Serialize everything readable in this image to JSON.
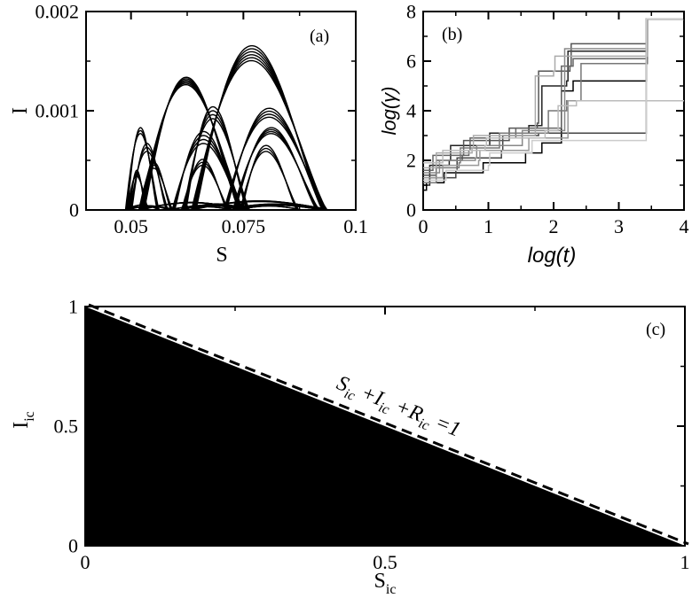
{
  "chart_data": [
    {
      "panel": "(a)",
      "type": "line",
      "xlabel": "S",
      "ylabel": "I",
      "xlim": [
        0.04,
        0.1
      ],
      "ylim": [
        0,
        0.002
      ],
      "xticks": [
        "0.05",
        "0.075",
        "0.1"
      ],
      "xtick_values": [
        0.05,
        0.075,
        0.1
      ],
      "yticks": [
        "0",
        "0.001",
        "0.002"
      ],
      "ytick_values": [
        0,
        0.001,
        0.002
      ],
      "color": "#000000",
      "loops": [
        {
          "s0": 0.049,
          "s1": 0.056,
          "peak": 0.0008,
          "copies": 3,
          "spread": 3e-05
        },
        {
          "s0": 0.0495,
          "s1": 0.0535,
          "peak": 0.00037,
          "copies": 4,
          "spread": 2e-05
        },
        {
          "s0": 0.05,
          "s1": 0.058,
          "peak": 0.00063,
          "copies": 3,
          "spread": 4e-05
        },
        {
          "s0": 0.052,
          "s1": 0.059,
          "peak": 0.00045,
          "copies": 3,
          "spread": 3e-05
        },
        {
          "s0": 0.0525,
          "s1": 0.0745,
          "peak": 0.0013,
          "copies": 6,
          "spread": 1.5e-05
        },
        {
          "s0": 0.0595,
          "s1": 0.0745,
          "peak": 0.00073,
          "copies": 4,
          "spread": 4e-05
        },
        {
          "s0": 0.0615,
          "s1": 0.0715,
          "peak": 0.00048,
          "copies": 3,
          "spread": 3e-05
        },
        {
          "s0": 0.062,
          "s1": 0.076,
          "peak": 0.00098,
          "copies": 4,
          "spread": 4e-05
        },
        {
          "s0": 0.064,
          "s1": 0.093,
          "peak": 0.00158,
          "copies": 6,
          "spread": 3e-05
        },
        {
          "s0": 0.071,
          "s1": 0.093,
          "peak": 0.00098,
          "copies": 4,
          "spread": 3e-05
        },
        {
          "s0": 0.073,
          "s1": 0.0915,
          "peak": 0.0008,
          "copies": 4,
          "spread": 2e-05
        },
        {
          "s0": 0.0745,
          "s1": 0.087,
          "peak": 0.00062,
          "copies": 3,
          "spread": 3e-05
        }
      ]
    },
    {
      "panel": "(b)",
      "type": "line",
      "xlabel": "log(t)",
      "ylabel": "log(γ)",
      "xlim": [
        0,
        4
      ],
      "ylim": [
        0,
        8
      ],
      "xticks": [
        "0",
        "1",
        "2",
        "3",
        "4"
      ],
      "xtick_values": [
        0,
        1,
        2,
        3,
        4
      ],
      "yticks": [
        "0",
        "2",
        "4",
        "6",
        "8"
      ],
      "ytick_values": [
        0,
        2,
        4,
        6,
        8
      ],
      "series": [
        {
          "color": "#000000",
          "points": [
            [
              0,
              0.8
            ],
            [
              0.05,
              1.1
            ],
            [
              0.3,
              1.1
            ],
            [
              0.32,
              1.5
            ],
            [
              0.9,
              1.5
            ],
            [
              0.92,
              1.9
            ],
            [
              1.55,
              1.9
            ],
            [
              1.57,
              2.3
            ],
            [
              1.8,
              2.3
            ],
            [
              1.82,
              2.7
            ],
            [
              2.1,
              2.7
            ],
            [
              2.12,
              4.8
            ],
            [
              2.3,
              5.2
            ],
            [
              3.4,
              5.2
            ],
            [
              3.42,
              7.7
            ],
            [
              4,
              7.7
            ]
          ]
        },
        {
          "color": "#222222",
          "points": [
            [
              0,
              1.0
            ],
            [
              0.1,
              1.8
            ],
            [
              0.4,
              2.0
            ],
            [
              0.42,
              2.6
            ],
            [
              1.0,
              2.6
            ],
            [
              1.02,
              3.1
            ],
            [
              1.6,
              3.1
            ],
            [
              1.62,
              3.4
            ],
            [
              1.8,
              3.4
            ],
            [
              1.82,
              5.0
            ],
            [
              2.2,
              5.2
            ],
            [
              2.22,
              6.4
            ],
            [
              3.42,
              6.4
            ],
            [
              3.44,
              7.7
            ],
            [
              4,
              7.7
            ]
          ]
        },
        {
          "color": "#444444",
          "points": [
            [
              0,
              1.2
            ],
            [
              0.1,
              1.3
            ],
            [
              0.5,
              1.6
            ],
            [
              0.52,
              2.1
            ],
            [
              1.2,
              2.4
            ],
            [
              1.22,
              3.0
            ],
            [
              1.75,
              3.0
            ],
            [
              1.77,
              3.1
            ],
            [
              3.4,
              3.1
            ],
            [
              3.42,
              7.7
            ],
            [
              4,
              7.7
            ]
          ]
        },
        {
          "color": "#555555",
          "points": [
            [
              0,
              1.4
            ],
            [
              0.2,
              2.0
            ],
            [
              0.6,
              2.2
            ],
            [
              0.62,
              2.8
            ],
            [
              1.3,
              2.8
            ],
            [
              1.32,
              3.3
            ],
            [
              1.75,
              3.5
            ],
            [
              1.77,
              5.6
            ],
            [
              2.25,
              5.8
            ],
            [
              2.27,
              6.7
            ],
            [
              3.42,
              6.7
            ],
            [
              3.44,
              7.7
            ],
            [
              4,
              7.7
            ]
          ]
        },
        {
          "color": "#666666",
          "points": [
            [
              0,
              1.6
            ],
            [
              0.15,
              2.2
            ],
            [
              0.7,
              2.4
            ],
            [
              0.72,
              2.9
            ],
            [
              1.4,
              2.9
            ],
            [
              1.42,
              3.3
            ],
            [
              2.1,
              3.3
            ],
            [
              2.12,
              5.8
            ],
            [
              2.3,
              6.1
            ],
            [
              3.42,
              6.1
            ],
            [
              3.44,
              7.7
            ],
            [
              4,
              7.7
            ]
          ]
        },
        {
          "color": "#777777",
          "points": [
            [
              0,
              1.1
            ],
            [
              0.2,
              1.7
            ],
            [
              0.55,
              1.9
            ],
            [
              0.57,
              2.5
            ],
            [
              1.15,
              2.5
            ],
            [
              1.17,
              3.1
            ],
            [
              1.9,
              3.1
            ],
            [
              1.92,
              4.0
            ],
            [
              2.2,
              4.4
            ],
            [
              2.4,
              4.4
            ],
            [
              2.42,
              5.9
            ],
            [
              3.42,
              5.9
            ],
            [
              3.44,
              7.7
            ],
            [
              4,
              7.7
            ]
          ]
        },
        {
          "color": "#888888",
          "points": [
            [
              0,
              1.5
            ],
            [
              0.25,
              2.0
            ],
            [
              0.8,
              2.1
            ],
            [
              0.82,
              2.6
            ],
            [
              1.5,
              2.6
            ],
            [
              1.52,
              3.2
            ],
            [
              2.15,
              3.2
            ],
            [
              2.17,
              6.5
            ],
            [
              3.42,
              6.5
            ],
            [
              3.44,
              7.7
            ],
            [
              4,
              7.7
            ]
          ]
        },
        {
          "color": "#999999",
          "points": [
            [
              0,
              1.3
            ],
            [
              0.3,
              1.8
            ],
            [
              0.85,
              2.0
            ],
            [
              0.87,
              2.4
            ],
            [
              1.6,
              2.4
            ],
            [
              1.62,
              2.9
            ],
            [
              2.2,
              2.9
            ],
            [
              2.22,
              4.4
            ],
            [
              4,
              4.4
            ]
          ]
        },
        {
          "color": "#aaaaaa",
          "points": [
            [
              0,
              1.7
            ],
            [
              0.2,
              2.3
            ],
            [
              0.75,
              2.5
            ],
            [
              0.77,
              3.0
            ],
            [
              1.7,
              3.0
            ],
            [
              1.72,
              5.4
            ],
            [
              2.0,
              5.6
            ],
            [
              2.02,
              6.2
            ],
            [
              3.42,
              6.2
            ],
            [
              3.44,
              7.7
            ],
            [
              4,
              7.7
            ]
          ]
        },
        {
          "color": "#bbbbbb",
          "points": [
            [
              0,
              1.9
            ],
            [
              0.3,
              2.4
            ],
            [
              0.95,
              2.6
            ],
            [
              0.97,
              2.9
            ],
            [
              1.85,
              2.9
            ],
            [
              1.87,
              3.2
            ],
            [
              2.05,
              3.2
            ],
            [
              2.07,
              4.2
            ],
            [
              2.35,
              4.4
            ],
            [
              4,
              4.4
            ]
          ]
        },
        {
          "color": "#cccccc",
          "points": [
            [
              0,
              1.2
            ],
            [
              0.35,
              1.6
            ],
            [
              1.0,
              1.8
            ],
            [
              1.02,
              2.3
            ],
            [
              1.65,
              2.3
            ],
            [
              1.67,
              2.8
            ],
            [
              3.4,
              2.8
            ],
            [
              3.42,
              7.7
            ],
            [
              4,
              7.7
            ]
          ]
        }
      ]
    },
    {
      "panel": "(c)",
      "type": "area",
      "xlabel_base": "S",
      "xlabel_sub": "ic",
      "ylabel_base": "I",
      "ylabel_sub": "ic",
      "xlim": [
        0,
        1
      ],
      "ylim": [
        0,
        1
      ],
      "xticks": [
        "0",
        "0.5",
        "1"
      ],
      "xtick_values": [
        0,
        0.5,
        1
      ],
      "yticks": [
        "0",
        "0.5",
        "1"
      ],
      "ytick_values": [
        0,
        0.5,
        1
      ],
      "fill_region": [
        [
          0,
          0
        ],
        [
          1,
          0
        ],
        [
          0,
          1
        ]
      ],
      "fill_color": "#000000",
      "dashed_line": [
        [
          0,
          1
        ],
        [
          1,
          0
        ]
      ],
      "annotation_parts": [
        {
          "t": "S",
          "sub": "ic"
        },
        {
          "t": " +I",
          "sub": "ic"
        },
        {
          "t": " +R",
          "sub": "ic"
        },
        {
          "t": " =1",
          "sub": ""
        }
      ]
    }
  ]
}
